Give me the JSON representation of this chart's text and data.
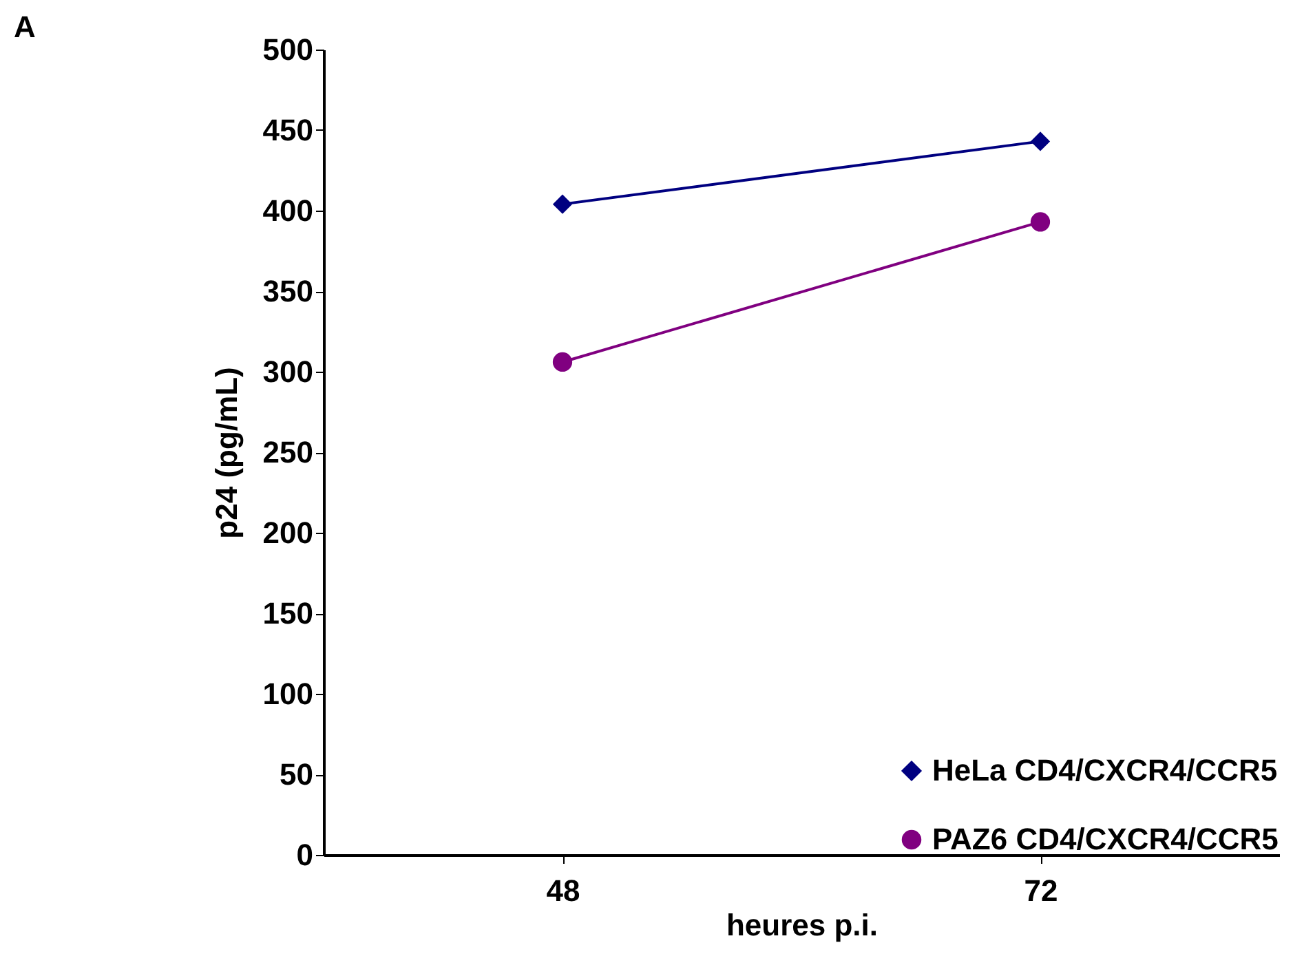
{
  "chart_data": {
    "type": "line",
    "xlabel": "heures p.i.",
    "ylabel": "p24 (pg/mL)",
    "annotations": [
      "A"
    ],
    "categories": [
      "48",
      "72"
    ],
    "series": [
      {
        "name": "HeLa CD4/CXCR4/CCR5",
        "color": "#000080",
        "marker": "diamond",
        "values": [
          404,
          443
        ]
      },
      {
        "name": "PAZ6 CD4/CXCR4/CCR5",
        "color": "#800080",
        "marker": "circle",
        "values": [
          306,
          393
        ]
      }
    ],
    "ylim": [
      0,
      500
    ],
    "yticks": [
      0,
      50,
      100,
      150,
      200,
      250,
      300,
      350,
      400,
      450,
      500
    ],
    "grid": false,
    "legend": "bottom right",
    "line_style": "solid"
  }
}
